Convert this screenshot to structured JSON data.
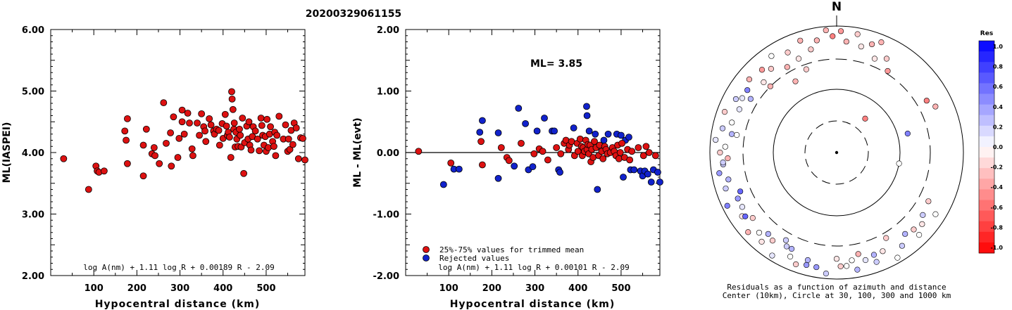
{
  "page_title": "20200329061155",
  "chart_data": [
    {
      "type": "scatter",
      "xlabel": "Hypocentral distance (km)",
      "ylabel": "ML(IASPEI)",
      "xlim": [
        0,
        590
      ],
      "ylim": [
        2.0,
        6.0
      ],
      "xticks": [
        "100",
        "200",
        "300",
        "400",
        "500"
      ],
      "yticks": [
        "2.00",
        "3.00",
        "4.00",
        "5.00",
        "6.00"
      ],
      "annotation": "log A(nm) + 1.11 log R + 0.00189 R - 2.09",
      "colors": {
        "point": "#dd1111",
        "edge": "#000000"
      },
      "x": [
        30,
        88,
        105,
        108,
        112,
        124,
        172,
        175,
        178,
        178,
        215,
        215,
        222,
        235,
        240,
        242,
        252,
        262,
        268,
        278,
        280,
        285,
        295,
        298,
        305,
        305,
        310,
        318,
        322,
        328,
        330,
        340,
        345,
        350,
        355,
        358,
        360,
        368,
        372,
        378,
        380,
        385,
        390,
        392,
        398,
        400,
        405,
        408,
        410,
        412,
        415,
        418,
        420,
        421,
        423,
        425,
        426,
        428,
        430,
        432,
        435,
        438,
        440,
        442,
        445,
        448,
        450,
        455,
        458,
        460,
        462,
        465,
        468,
        470,
        475,
        480,
        484,
        488,
        490,
        492,
        495,
        498,
        500,
        502,
        505,
        508,
        510,
        515,
        518,
        520,
        522,
        525,
        530,
        540,
        545,
        550,
        552,
        555,
        558,
        562,
        565,
        570,
        575,
        580,
        585,
        590
      ],
      "y": [
        3.9,
        3.4,
        3.78,
        3.7,
        3.68,
        3.7,
        4.35,
        4.2,
        4.55,
        3.82,
        4.12,
        3.62,
        4.38,
        3.98,
        4.08,
        3.95,
        3.82,
        4.81,
        4.15,
        4.32,
        3.78,
        4.58,
        3.92,
        4.23,
        4.69,
        4.5,
        4.3,
        4.64,
        4.48,
        4.06,
        3.95,
        4.48,
        4.28,
        4.63,
        4.42,
        4.35,
        4.18,
        4.55,
        4.45,
        4.35,
        4.3,
        4.38,
        4.36,
        4.12,
        4.47,
        4.23,
        4.62,
        4.43,
        4.28,
        4.33,
        4.25,
        3.92,
        4.99,
        4.87,
        4.7,
        4.38,
        4.48,
        4.09,
        4.33,
        4.22,
        4.1,
        4.38,
        4.28,
        4.09,
        4.56,
        3.66,
        4.16,
        4.43,
        4.22,
        4.5,
        4.12,
        4.04,
        4.26,
        4.42,
        4.35,
        4.22,
        4.03,
        4.56,
        4.44,
        4.28,
        4.12,
        4.26,
        4.02,
        4.54,
        4.08,
        4.3,
        4.42,
        4.18,
        4.1,
        4.33,
        3.95,
        4.28,
        4.59,
        4.22,
        4.45,
        4.02,
        4.22,
        4.05,
        4.36,
        4.13,
        4.48,
        4.4,
        3.9,
        4.24,
        4.23,
        3.88
      ]
    },
    {
      "type": "scatter",
      "xlabel": "Hypocentral distance (km)",
      "ylabel": "ML - ML(evt)",
      "xlim": [
        0,
        590
      ],
      "ylim": [
        -2.0,
        2.0
      ],
      "xticks": [
        "100",
        "200",
        "300",
        "400",
        "500"
      ],
      "yticks": [
        "-2.00",
        "-1.00",
        "0.00",
        "1.00",
        "2.00"
      ],
      "annotation": "log A(nm) + 1.11 log R + 0.00101 R - 2.09",
      "ml_label": "ML= 3.85",
      "legend": [
        {
          "label": "25%-75% values for trimmed mean",
          "color": "#dd1111"
        },
        {
          "label": "Rejected values",
          "color": "#1122cc"
        }
      ],
      "colors": {
        "accepted": "#dd1111",
        "rejected": "#1122cc",
        "edge": "#000000",
        "zero_line": "#000000"
      },
      "series": [
        {
          "name": "25%-75% values for trimmed mean",
          "x": [
            30,
            105,
            175,
            178,
            222,
            235,
            240,
            268,
            298,
            310,
            318,
            330,
            350,
            360,
            368,
            372,
            378,
            380,
            385,
            392,
            398,
            400,
            405,
            408,
            410,
            412,
            415,
            418,
            421,
            423,
            425,
            428,
            430,
            432,
            435,
            438,
            442,
            448,
            450,
            455,
            458,
            462,
            465,
            468,
            475,
            480,
            484,
            488,
            492,
            495,
            498,
            502,
            508,
            515,
            520,
            525,
            540,
            552,
            558,
            565,
            580
          ],
          "y": [
            0.02,
            -0.17,
            0.18,
            -0.2,
            0.08,
            -0.08,
            -0.13,
            0.15,
            -0.02,
            0.06,
            0.02,
            -0.12,
            0.08,
            -0.02,
            0.15,
            0.2,
            0.05,
            0.12,
            0.18,
            -0.05,
            0.15,
            0.02,
            0.22,
            0.1,
            -0.05,
            0.08,
            0.02,
            0.2,
            0.05,
            0.13,
            -0.02,
            0.12,
            -0.15,
            0.05,
            -0.08,
            0.18,
            0.08,
            -0.05,
            0.12,
            0.02,
            -0.1,
            0.1,
            0.05,
            -0.02,
            0.0,
            0.08,
            0.02,
            -0.05,
            0.12,
            -0.1,
            0.0,
            0.15,
            -0.08,
            0.05,
            -0.12,
            0.02,
            0.08,
            -0.05,
            0.1,
            0.0,
            -0.05
          ]
        },
        {
          "name": "Rejected values",
          "x": [
            88,
            112,
            124,
            172,
            178,
            215,
            215,
            252,
            262,
            278,
            285,
            295,
            305,
            322,
            340,
            345,
            355,
            358,
            390,
            420,
            421,
            426,
            440,
            445,
            460,
            470,
            490,
            500,
            505,
            510,
            518,
            522,
            530,
            545,
            550,
            555,
            562,
            570,
            575,
            585,
            590
          ],
          "y": [
            -0.52,
            -0.27,
            -0.27,
            0.33,
            0.52,
            0.32,
            -0.42,
            -0.22,
            0.72,
            0.47,
            -0.28,
            -0.23,
            0.35,
            0.56,
            0.35,
            0.35,
            -0.28,
            -0.32,
            0.4,
            0.75,
            0.6,
            0.35,
            0.3,
            -0.6,
            0.2,
            0.3,
            0.3,
            0.28,
            -0.4,
            0.2,
            0.25,
            -0.28,
            -0.28,
            -0.3,
            -0.38,
            -0.3,
            -0.35,
            -0.48,
            -0.28,
            -0.32,
            -0.48
          ]
        }
      ]
    },
    {
      "type": "polar",
      "north_label": "N",
      "caption_line1": "Residuals as a function of azimuth and distance",
      "caption_line2": "Center (10km), Circle at 30, 100, 300 and 1000 km",
      "colorbar_title": "Res",
      "colorbar_ticks": [
        "1.0",
        "0.8",
        "0.6",
        "0.4",
        "0.2",
        "0.0",
        "-0.2",
        "-0.4",
        "-0.6",
        "-0.8",
        "-1.0"
      ],
      "colors": {
        "positive": "#0000ff",
        "negative": "#ff0000",
        "neutral": "#ffffff"
      },
      "azimuth_deg": [
        -5,
        -2,
        2,
        5,
        10,
        13,
        18,
        22,
        28,
        32,
        -10,
        -14,
        -18,
        -22,
        -26,
        -30,
        -34,
        -38,
        -42,
        -46,
        -50,
        -55,
        -58,
        -62,
        -66,
        -70,
        -74,
        -78,
        -80,
        -84,
        -87,
        -90,
        -93,
        -96,
        -100,
        -104,
        -108,
        -112,
        -116,
        -120,
        -124,
        -128,
        -132,
        -136,
        -140,
        -144,
        -148,
        -152,
        -156,
        -160,
        -165,
        -170,
        -175,
        180,
        175,
        170,
        165,
        160,
        155,
        150,
        145,
        140,
        135,
        130,
        126,
        122,
        118,
        60,
        65,
        75,
        100,
        135,
        150,
        -30,
        -20,
        40,
        -80,
        -140,
        160,
        22,
        -45,
        -60,
        -95,
        -115,
        -125,
        -150,
        -155,
        -165,
        178,
        172,
        168
      ],
      "radius_fraction": [
        0.97,
        0.92,
        0.96,
        0.88,
        0.95,
        0.86,
        0.9,
        0.8,
        0.84,
        0.76,
        0.9,
        0.84,
        0.93,
        0.8,
        0.88,
        0.78,
        0.92,
        0.84,
        0.88,
        0.8,
        0.9,
        0.86,
        0.8,
        0.9,
        0.84,
        0.94,
        0.86,
        0.92,
        0.84,
        0.96,
        0.88,
        0.92,
        0.86,
        0.9,
        0.94,
        0.88,
        0.92,
        0.82,
        0.96,
        0.86,
        0.9,
        0.84,
        0.94,
        0.88,
        0.92,
        0.86,
        0.96,
        0.84,
        0.9,
        0.94,
        0.88,
        0.92,
        0.96,
        0.84,
        0.9,
        0.94,
        0.88,
        0.92,
        0.86,
        0.96,
        0.9,
        0.84,
        0.92,
        0.88,
        0.84,
        0.92,
        0.82,
        0.82,
        0.86,
        0.58,
        0.5,
        0.86,
        0.78,
        0.65,
        0.7,
        0.35,
        0.8,
        0.84,
        0.86,
        0.94,
        0.74,
        0.86,
        0.9,
        0.86,
        0.88,
        0.8,
        0.84,
        0.92,
        0.9,
        0.86,
        0.82
      ],
      "residual": [
        -0.3,
        -0.5,
        -0.4,
        -0.3,
        -0.2,
        -0.1,
        -0.3,
        -0.1,
        -0.2,
        -0.4,
        -0.3,
        -0.2,
        -0.3,
        -0.1,
        -0.2,
        -0.3,
        0.0,
        -0.2,
        -0.4,
        -0.1,
        -0.3,
        0.5,
        0.3,
        0.2,
        0.1,
        -0.2,
        0.0,
        0.2,
        0.3,
        0.1,
        0.0,
        -0.2,
        -0.3,
        0.2,
        0.4,
        0.3,
        0.2,
        0.6,
        0.5,
        0.1,
        -0.1,
        -0.2,
        -0.3,
        0.0,
        -0.1,
        -0.2,
        0.1,
        0.2,
        0.0,
        -0.2,
        0.3,
        0.4,
        0.2,
        -0.1,
        0.0,
        0.3,
        0.1,
        0.2,
        -0.1,
        0.0,
        0.2,
        0.3,
        0.0,
        -0.1,
        0.2,
        0.0,
        -0.2,
        -0.5,
        -0.3,
        0.5,
        0.0,
        -0.2,
        -0.2,
        -0.3,
        -0.2,
        -0.5,
        0.0,
        0.3,
        0.3,
        -0.3,
        -0.3,
        0.1,
        0.2,
        0.4,
        0.6,
        0.2,
        0.3,
        0.4,
        -0.2,
        0.0,
        -0.3
      ]
    }
  ]
}
